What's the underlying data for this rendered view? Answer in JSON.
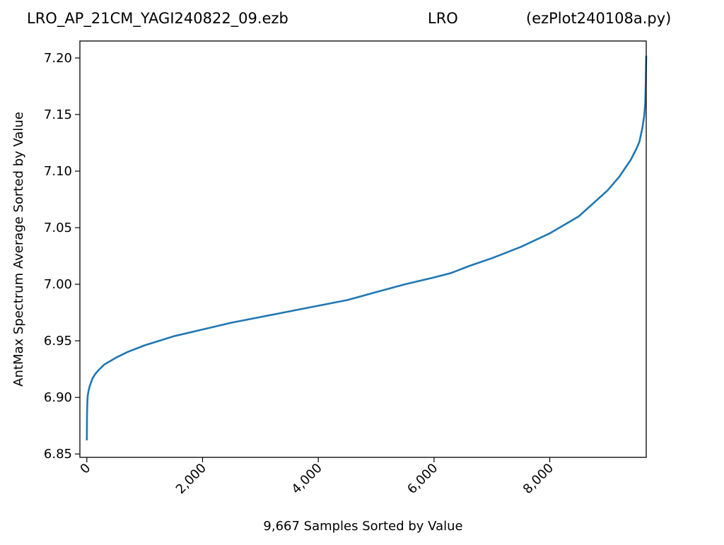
{
  "header": {
    "file_name": "LRO_AP_21CM_YAGI240822_09.ezb",
    "site": "LRO",
    "script_name": "(ezPlot240108a.py)"
  },
  "chart_data": {
    "type": "line",
    "title": "",
    "xlabel": "9,667 Samples Sorted by Value",
    "ylabel": "AntMax Spectrum Average Sorted by Value",
    "xlim": [
      -120,
      9667
    ],
    "ylim": [
      6.847,
      7.215
    ],
    "x_ticks": [
      0,
      2000,
      4000,
      6000,
      8000
    ],
    "x_tick_labels": [
      "0",
      "2,000",
      "4,000",
      "6,000",
      "8,000"
    ],
    "y_ticks": [
      6.85,
      6.9,
      6.95,
      7.0,
      7.05,
      7.1,
      7.15,
      7.2
    ],
    "y_tick_labels": [
      "6.85",
      "6.90",
      "6.95",
      "7.00",
      "7.05",
      "7.10",
      "7.15",
      "7.20"
    ],
    "grid": false,
    "line_color": "#1f77b4",
    "series": [
      {
        "x": [
          0,
          3,
          8,
          15,
          30,
          50,
          100,
          150,
          200,
          300,
          400,
          500,
          700,
          1000,
          1500,
          2000,
          2500,
          3000,
          3500,
          4000,
          4500,
          5000,
          5500,
          6000,
          6300,
          6600,
          7000,
          7500,
          8000,
          8500,
          9000,
          9200,
          9400,
          9500,
          9550,
          9600,
          9630,
          9650,
          9660,
          9667
        ],
        "values": [
          6.862,
          6.885,
          6.895,
          6.901,
          6.906,
          6.91,
          6.917,
          6.921,
          6.924,
          6.929,
          6.932,
          6.935,
          6.94,
          6.946,
          6.954,
          6.96,
          6.966,
          6.971,
          6.976,
          6.981,
          6.986,
          6.993,
          7.0,
          7.006,
          7.01,
          7.016,
          7.023,
          7.033,
          7.045,
          7.06,
          7.083,
          7.095,
          7.11,
          7.12,
          7.126,
          7.138,
          7.148,
          7.16,
          7.18,
          7.202
        ]
      }
    ]
  }
}
